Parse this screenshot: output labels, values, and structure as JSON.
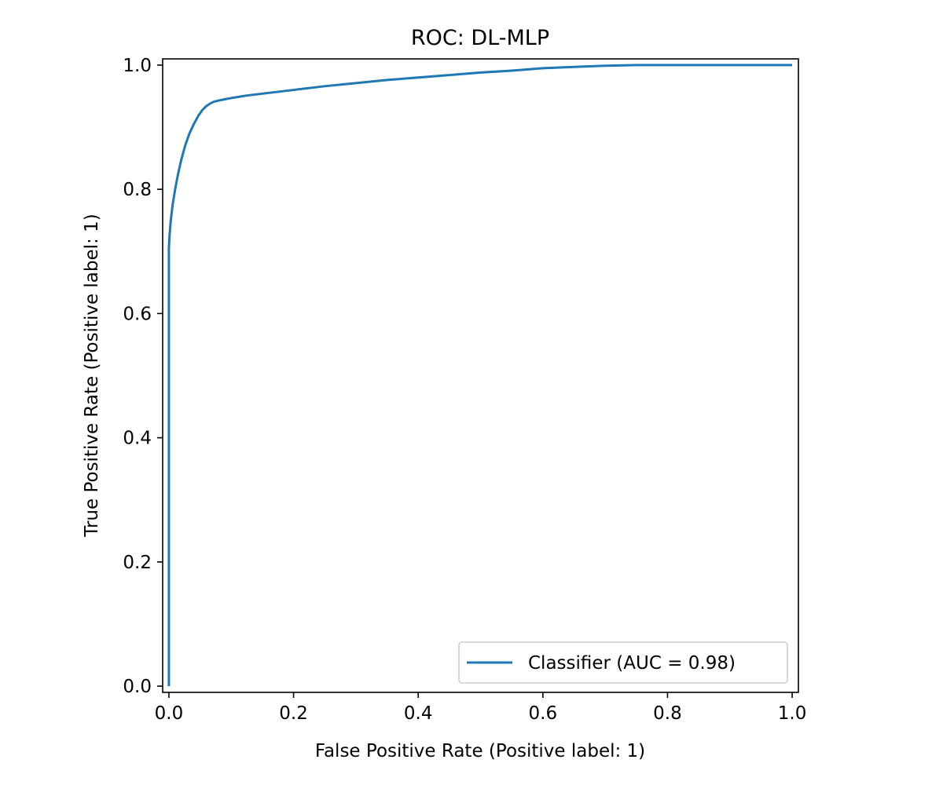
{
  "chart_data": {
    "type": "line",
    "title": "ROC: DL-MLP",
    "xlabel": "False Positive Rate (Positive label: 1)",
    "ylabel": "True Positive Rate (Positive label: 1)",
    "xlim": [
      -0.01,
      1.01
    ],
    "ylim": [
      -0.01,
      1.01
    ],
    "xticks": [
      0.0,
      0.2,
      0.4,
      0.6,
      0.8,
      1.0
    ],
    "xtick_labels": [
      "0.0",
      "0.2",
      "0.4",
      "0.6",
      "0.8",
      "1.0"
    ],
    "yticks": [
      0.0,
      0.2,
      0.4,
      0.6,
      0.8,
      1.0
    ],
    "ytick_labels": [
      "0.0",
      "0.2",
      "0.4",
      "0.6",
      "0.8",
      "1.0"
    ],
    "grid": false,
    "legend_position": "bottom-right",
    "series": [
      {
        "name": "Classifier (AUC = 0.98)",
        "color": "#1f77b4",
        "x": [
          0.0,
          0.0,
          0.001,
          0.003,
          0.006,
          0.01,
          0.015,
          0.02,
          0.026,
          0.033,
          0.04,
          0.047,
          0.054,
          0.06,
          0.066,
          0.072,
          0.085,
          0.1,
          0.125,
          0.15,
          0.2,
          0.25,
          0.3,
          0.35,
          0.4,
          0.45,
          0.5,
          0.55,
          0.6,
          0.65,
          0.7,
          0.75,
          0.8,
          0.85,
          0.9,
          0.95,
          1.0
        ],
        "y": [
          0.0,
          0.705,
          0.725,
          0.75,
          0.775,
          0.8,
          0.826,
          0.848,
          0.87,
          0.89,
          0.905,
          0.918,
          0.928,
          0.934,
          0.938,
          0.941,
          0.944,
          0.947,
          0.951,
          0.954,
          0.96,
          0.966,
          0.971,
          0.976,
          0.98,
          0.984,
          0.988,
          0.991,
          0.995,
          0.997,
          0.999,
          1.0,
          1.0,
          1.0,
          1.0,
          1.0,
          1.0
        ]
      }
    ]
  }
}
